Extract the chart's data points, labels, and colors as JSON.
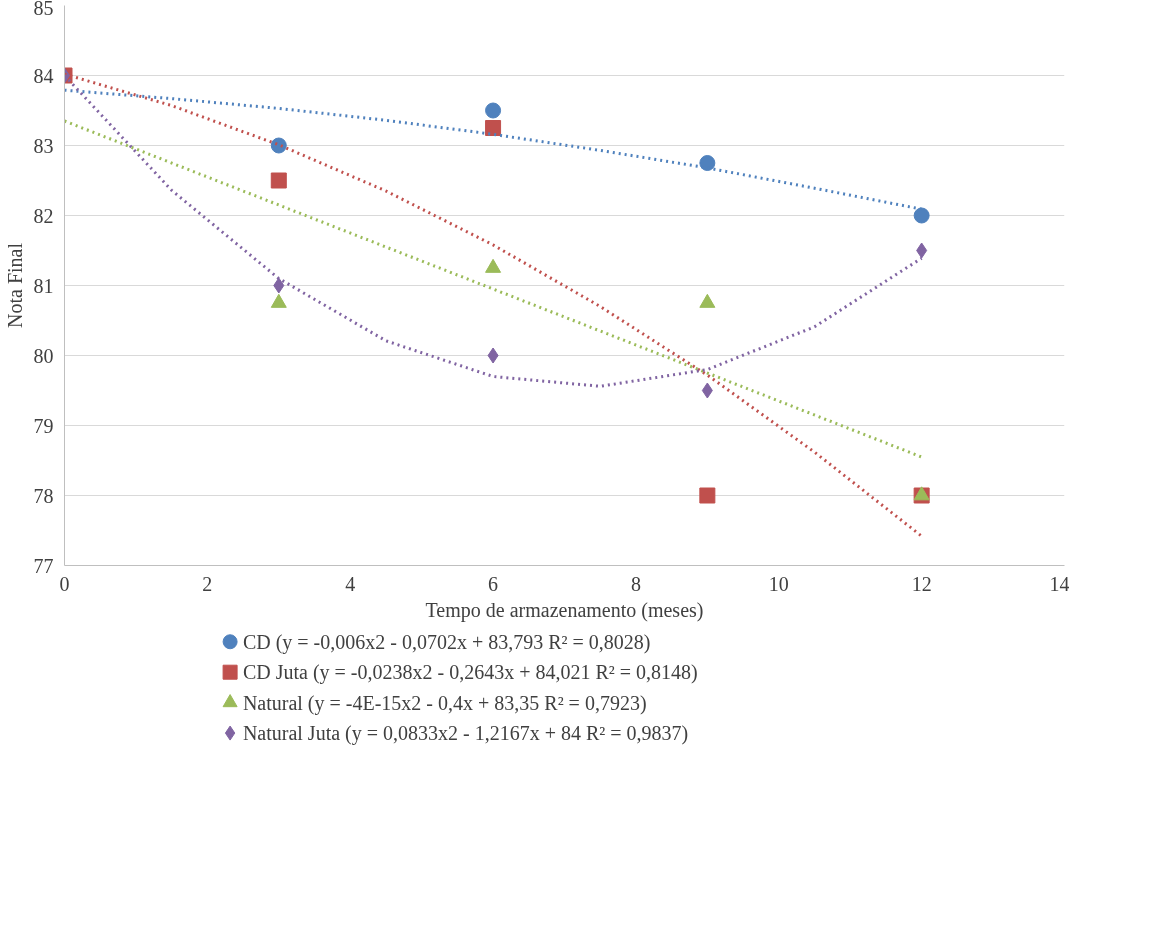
{
  "chart_data": {
    "type": "scatter",
    "xlabel": "Tempo de armazenamento (meses)",
    "ylabel": "Nota Final",
    "xlim": [
      0,
      14
    ],
    "xticks": [
      0,
      2,
      4,
      6,
      8,
      10,
      12,
      14
    ],
    "ylim": [
      77,
      85
    ],
    "yticks": [
      77,
      78,
      79,
      80,
      81,
      82,
      83,
      84,
      85
    ],
    "grid": "y",
    "legend": "bottom",
    "series": [
      {
        "name": "CD (y = -0,006x2 - 0,0702x + 83,793 R² = 0,8028)",
        "color": "#4f81bd",
        "marker": "circle",
        "x": [
          3,
          6,
          9,
          12
        ],
        "values": [
          83,
          83.5,
          82.75,
          82
        ]
      },
      {
        "name": "CD Juta (y = -0,0238x2 - 0,2643x + 84,021 R² = 0,8148)",
        "color": "#c0504d",
        "marker": "square",
        "x": [
          0,
          3,
          6,
          9,
          12
        ],
        "values": [
          84,
          82.5,
          83.25,
          78,
          78
        ]
      },
      {
        "name": "Natural (y = -4E-15x2 - 0,4x + 83,35 R² = 0,7923)",
        "color": "#9bbb59",
        "marker": "triangle",
        "x": [
          3,
          6,
          9,
          12
        ],
        "values": [
          80.75,
          81.25,
          80.75,
          78
        ]
      },
      {
        "name": "Natural Juta (y = 0,0833x2 - 1,2167x + 84 R² = 0,9837)",
        "color": "#8064a2",
        "marker": "diamond",
        "x": [
          0,
          3,
          6,
          9,
          12
        ],
        "values": [
          84,
          81,
          80,
          79.5,
          81.5
        ]
      },
      {
        "type": "line",
        "line_style": "dotted",
        "color": "#4f81bd",
        "x": [
          0,
          1.5,
          3,
          4.5,
          6,
          7.5,
          9,
          10.5,
          12
        ],
        "values": [
          83.79,
          83.67,
          83.53,
          83.36,
          83.16,
          82.93,
          82.68,
          82.39,
          82.09
        ]
      },
      {
        "type": "line",
        "line_style": "dotted",
        "color": "#c0504d",
        "x": [
          0,
          1.5,
          3,
          4.5,
          6,
          7.5,
          9,
          10.5,
          12
        ],
        "values": [
          84.02,
          83.57,
          83.01,
          82.35,
          81.58,
          80.7,
          79.72,
          78.62,
          77.42
        ]
      },
      {
        "type": "line",
        "line_style": "dotted",
        "color": "#9bbb59",
        "x": [
          0,
          12
        ],
        "values": [
          83.35,
          78.55
        ]
      },
      {
        "type": "line",
        "line_style": "dotted",
        "color": "#8064a2",
        "x": [
          0,
          1.5,
          3,
          4.5,
          6,
          7.5,
          9,
          10.5,
          12
        ],
        "values": [
          84,
          82.36,
          81.1,
          80.21,
          79.7,
          79.56,
          79.8,
          80.41,
          81.39
        ]
      }
    ]
  }
}
